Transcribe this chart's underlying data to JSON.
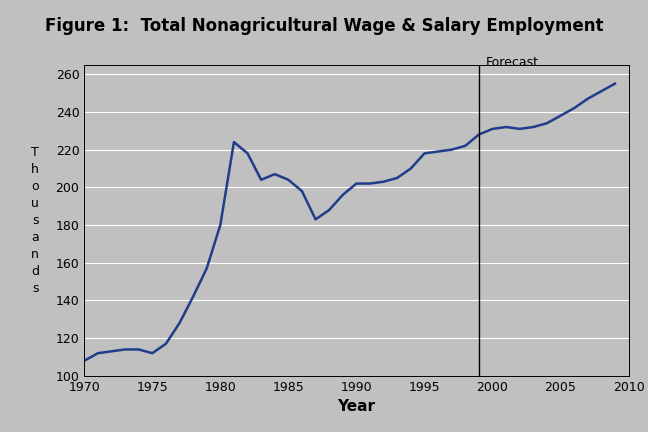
{
  "title": "Figure 1:  Total Nonagricultural Wage & Salary Employment",
  "xlabel": "Year",
  "ylabel": "T\nh\no\nu\ns\na\nn\nd\ns",
  "background_color": "#c0c0c0",
  "line_color": "#1f3d8a",
  "forecast_line_x": 1999,
  "forecast_label": "Forecast",
  "xlim": [
    1970,
    2010
  ],
  "ylim": [
    100,
    265
  ],
  "yticks": [
    100,
    120,
    140,
    160,
    180,
    200,
    220,
    240,
    260
  ],
  "xticks": [
    1970,
    1975,
    1980,
    1985,
    1990,
    1995,
    2000,
    2005,
    2010
  ],
  "years": [
    1970,
    1971,
    1972,
    1973,
    1974,
    1975,
    1976,
    1977,
    1978,
    1979,
    1980,
    1981,
    1982,
    1983,
    1984,
    1985,
    1986,
    1987,
    1988,
    1989,
    1990,
    1991,
    1992,
    1993,
    1994,
    1995,
    1996,
    1997,
    1998,
    1999,
    2000,
    2001,
    2002,
    2003,
    2004,
    2005,
    2006,
    2007,
    2008,
    2009
  ],
  "values": [
    108,
    112,
    113,
    114,
    114,
    112,
    117,
    128,
    142,
    157,
    180,
    224,
    218,
    204,
    207,
    204,
    198,
    183,
    188,
    196,
    202,
    202,
    203,
    205,
    210,
    218,
    219,
    220,
    222,
    228,
    231,
    232,
    231,
    232,
    234,
    238,
    242,
    247,
    251,
    255
  ]
}
